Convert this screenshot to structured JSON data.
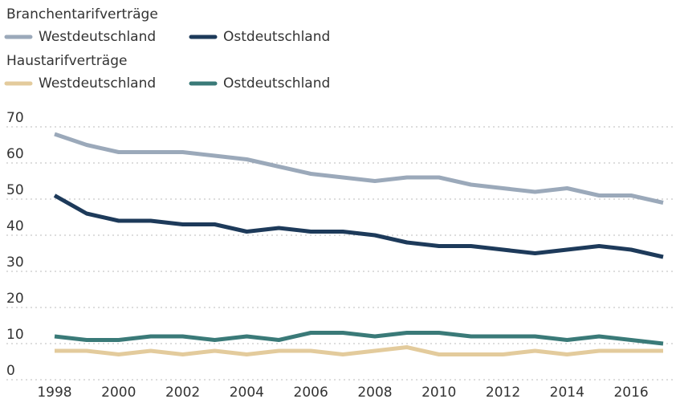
{
  "chart_data": {
    "type": "line",
    "groups": [
      {
        "title": "Branchentarifverträge",
        "series": [
          {
            "name": "Westdeutschland",
            "color": "#9ba9ba",
            "values": [
              68,
              65,
              63,
              63,
              63,
              62,
              61,
              59,
              57,
              56,
              55,
              56,
              56,
              54,
              53,
              52,
              53,
              51,
              51,
              49
            ]
          },
          {
            "name": "Ostdeutschland",
            "color": "#1d3a5a",
            "values": [
              51,
              46,
              44,
              44,
              43,
              43,
              41,
              42,
              41,
              41,
              40,
              38,
              37,
              37,
              36,
              35,
              36,
              37,
              36,
              34
            ]
          }
        ]
      },
      {
        "title": "Haustarifverträge",
        "series": [
          {
            "name": "Westdeutschland",
            "color": "#e3cb9c",
            "values": [
              8,
              8,
              7,
              8,
              7,
              8,
              7,
              8,
              8,
              7,
              8,
              9,
              7,
              7,
              7,
              8,
              7,
              8,
              8,
              8
            ]
          },
          {
            "name": "Ostdeutschland",
            "color": "#3a7a78",
            "values": [
              12,
              11,
              11,
              12,
              12,
              11,
              12,
              11,
              13,
              13,
              12,
              13,
              13,
              12,
              12,
              12,
              11,
              12,
              11,
              10
            ]
          }
        ]
      }
    ],
    "x": [
      1998,
      1999,
      2000,
      2001,
      2002,
      2003,
      2004,
      2005,
      2006,
      2007,
      2008,
      2009,
      2010,
      2011,
      2012,
      2013,
      2014,
      2015,
      2016,
      2017
    ],
    "xlim": [
      1998,
      2017
    ],
    "xticks": [
      1998,
      2000,
      2002,
      2004,
      2006,
      2008,
      2010,
      2012,
      2014,
      2016
    ],
    "ylim": [
      0,
      70
    ],
    "yticks": [
      0,
      10,
      20,
      30,
      40,
      50,
      60,
      70
    ],
    "grid": true
  }
}
